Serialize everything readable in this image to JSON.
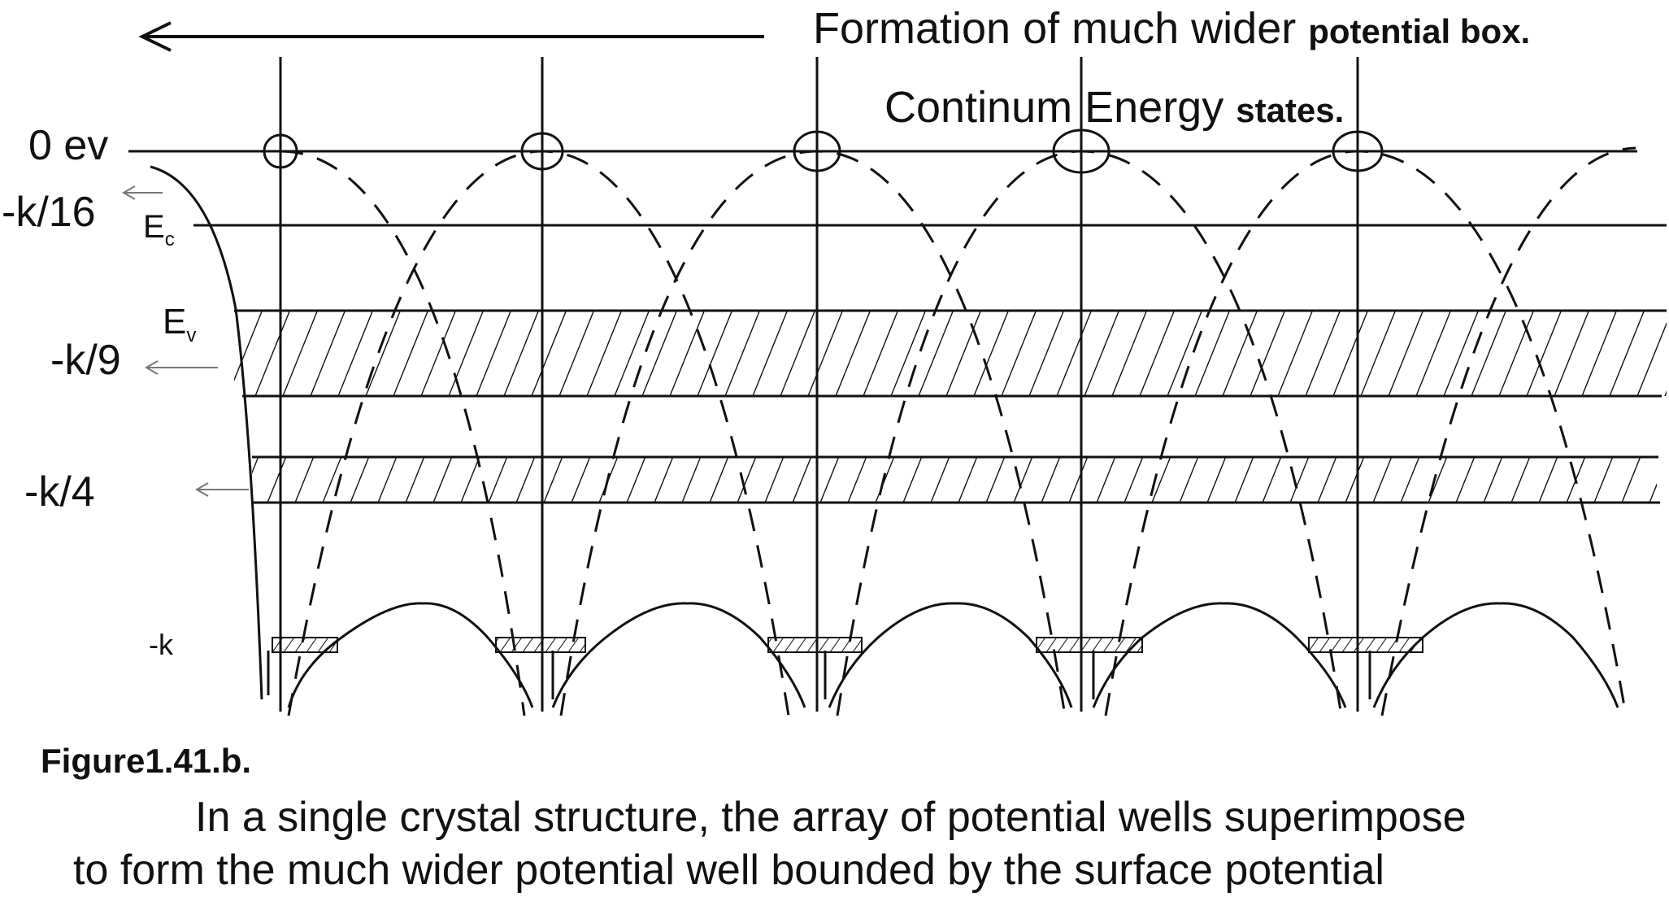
{
  "diagram": {
    "title_regular": "Formation of much wider ",
    "title_bold": "potential box.",
    "continuum_regular": "Continum Energy ",
    "continuum_bold": "states.",
    "energy_levels": [
      "0 ev",
      "-k/16",
      "-k/9",
      "-k/4",
      "-k"
    ],
    "band_labels": {
      "conduction": {
        "main": "E",
        "sub": "c"
      },
      "valence": {
        "main": "E",
        "sub": "v"
      }
    }
  },
  "caption": {
    "figure_label": "Figure1.41.b.",
    "line1": "In a single crystal structure,  the array of potential wells superimpose",
    "line2": "to form the much wider potential well bounded by the surface potential"
  }
}
